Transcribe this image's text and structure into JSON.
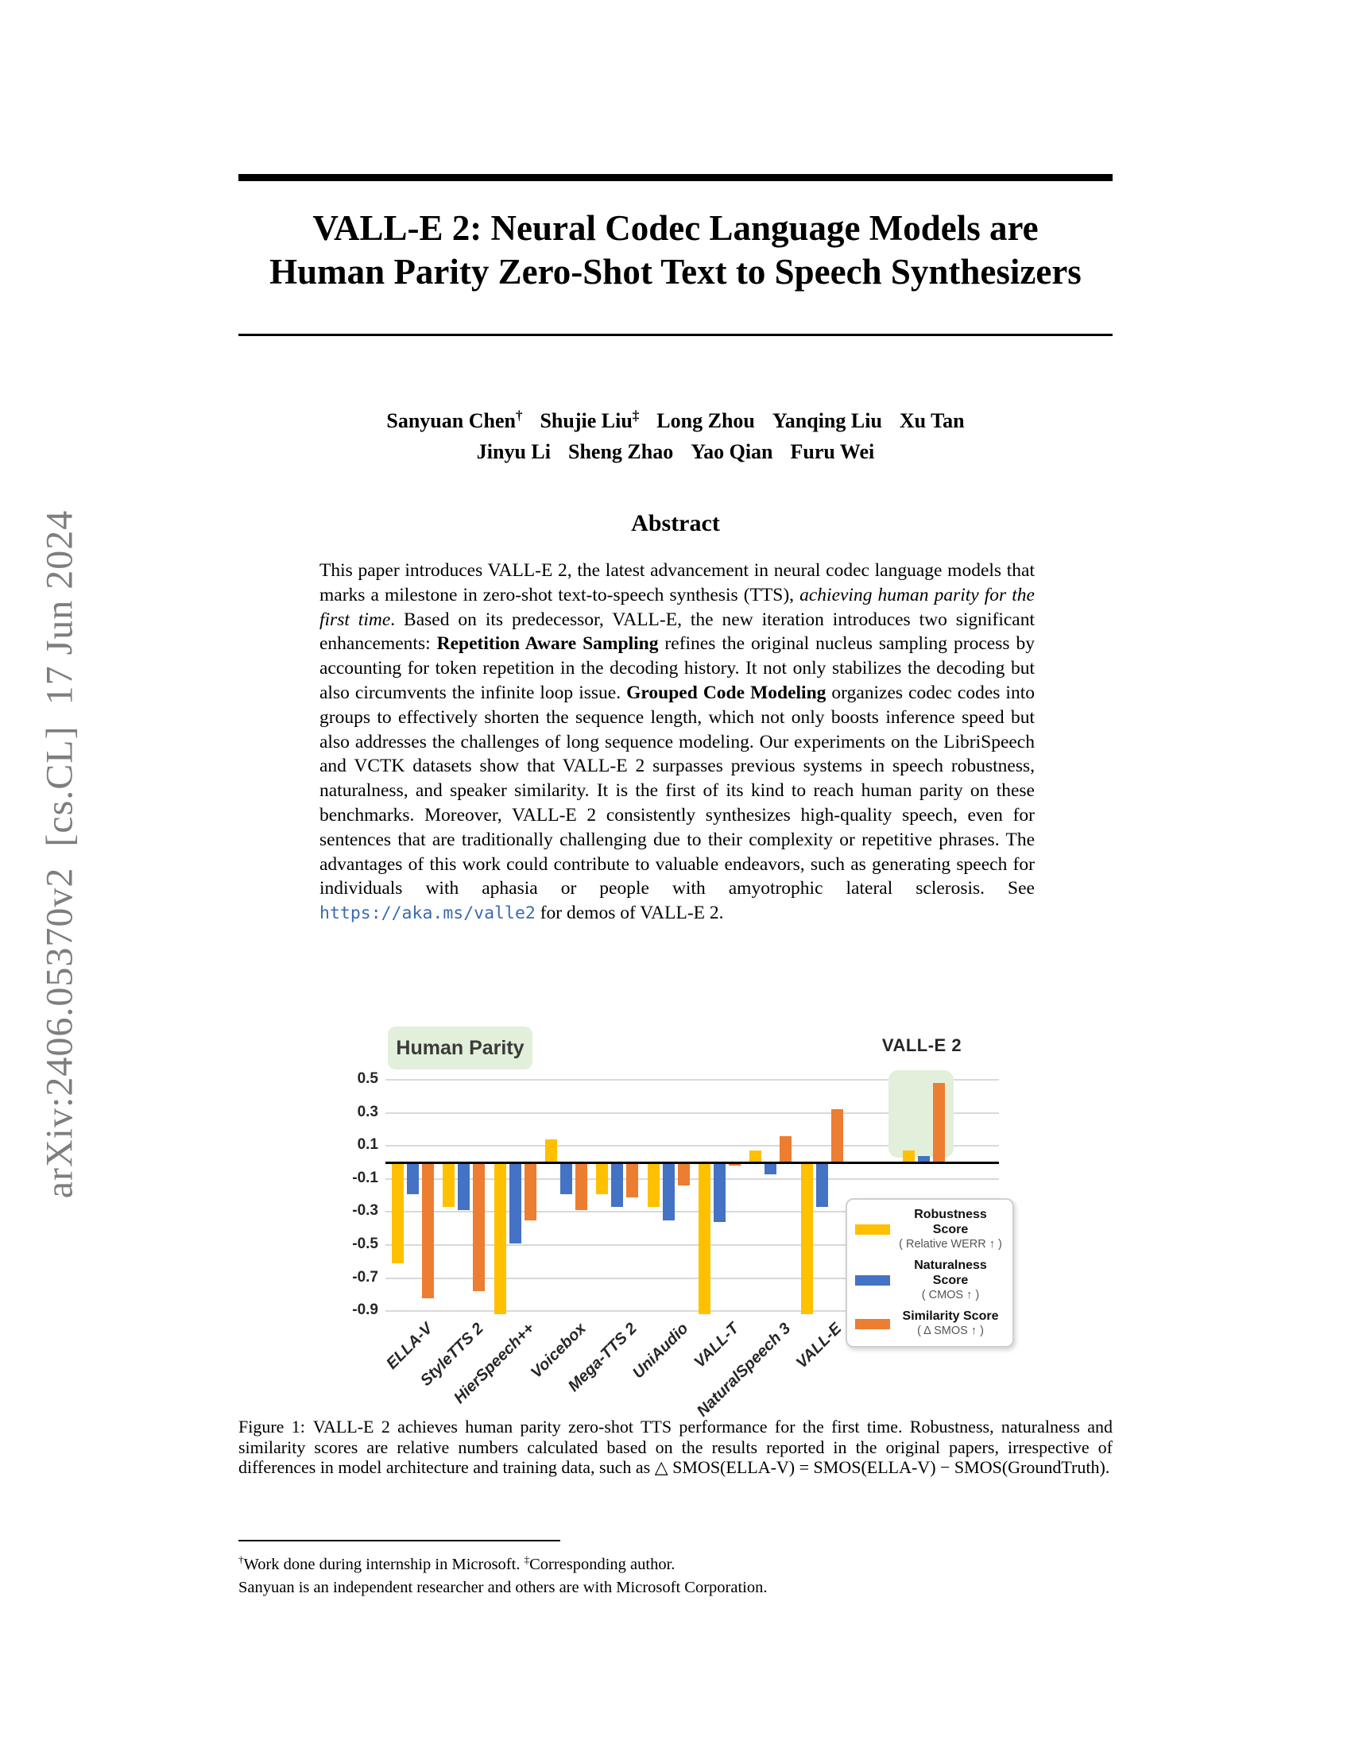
{
  "arxiv_stamp": "arXiv:2406.05370v2  [cs.CL]  17 Jun 2024",
  "title": {
    "line1": "VALL-E 2: Neural Codec Language Models are",
    "line2": "Human Parity Zero-Shot Text to Speech Synthesizers"
  },
  "authors": {
    "line1": [
      {
        "name": "Sanyuan Chen",
        "mark": "†"
      },
      {
        "name": "Shujie Liu",
        "mark": "‡"
      },
      {
        "name": "Long Zhou",
        "mark": ""
      },
      {
        "name": "Yanqing Liu",
        "mark": ""
      },
      {
        "name": "Xu Tan",
        "mark": ""
      }
    ],
    "line2": [
      {
        "name": "Jinyu Li",
        "mark": ""
      },
      {
        "name": "Sheng Zhao",
        "mark": ""
      },
      {
        "name": "Yao Qian",
        "mark": ""
      },
      {
        "name": "Furu Wei",
        "mark": ""
      }
    ]
  },
  "abstract": {
    "heading": "Abstract",
    "segments": [
      {
        "style": "normal",
        "text": "This paper introduces VALL-E 2, the latest advancement in neural codec language models that marks a milestone in zero-shot text-to-speech synthesis (TTS), "
      },
      {
        "style": "italic",
        "text": "achieving human parity for the first time"
      },
      {
        "style": "normal",
        "text": ". Based on its predecessor, VALL-E, the new iteration introduces two significant enhancements: "
      },
      {
        "style": "bold",
        "text": "Repetition Aware Sampling"
      },
      {
        "style": "normal",
        "text": " refines the original nucleus sampling process by accounting for token repetition in the decoding history. It not only stabilizes the decoding but also circumvents the infinite loop issue. "
      },
      {
        "style": "bold",
        "text": "Grouped Code Modeling"
      },
      {
        "style": "normal",
        "text": " organizes codec codes into groups to effectively shorten the sequence length, which not only boosts inference speed but also addresses the challenges of long sequence modeling. Our experiments on the LibriSpeech and VCTK datasets show that VALL-E 2 surpasses previous systems in speech robustness, naturalness, and speaker similarity. It is the first of its kind to reach human parity on these benchmarks. Moreover, VALL-E 2 consistently synthesizes high-quality speech, even for sentences that are traditionally challenging due to their complexity or repetitive phrases. The advantages of this work could contribute to valuable endeavors, such as generating speech for individuals with aphasia or people with amyotrophic lateral sclerosis. See "
      },
      {
        "style": "link",
        "text": "https://aka.ms/valle2"
      },
      {
        "style": "normal",
        "text": " for demos of VALL-E 2."
      }
    ]
  },
  "figure": {
    "human_parity_label": "Human Parity",
    "valle2_label": "VALL-E 2",
    "highlight_color": "#e2efda",
    "caption_prefix": "Figure 1:",
    "caption_body": "VALL-E 2 achieves human parity zero-shot TTS performance for the first time. Robustness, naturalness and similarity scores are relative numbers calculated based on the results reported in the original papers, irrespective of differences in model architecture and training data, such as △ SMOS(ELLA-V) = SMOS(ELLA-V) − SMOS(GroundTruth)."
  },
  "chart_data": {
    "type": "bar",
    "categories": [
      "ELLA-V",
      "StyleTTS 2",
      "HierSpeech++",
      "Voicebox",
      "Mega-TTS 2",
      "UniAudio",
      "VALL-T",
      "NaturalSpeech 3",
      "VALL-E",
      "VALL-E 2"
    ],
    "series": [
      {
        "name": "Robustness Score",
        "sub": "( Relative WERR ↑ )",
        "color": "#ffc000",
        "values": [
          -0.61,
          -0.27,
          -0.92,
          0.14,
          -0.19,
          -0.27,
          -0.92,
          0.07,
          -0.92,
          0.07
        ]
      },
      {
        "name": "Naturalness Score",
        "sub": "( CMOS ↑ )",
        "color": "#4472c4",
        "values": [
          -0.19,
          -0.29,
          -0.49,
          -0.19,
          -0.27,
          -0.35,
          -0.36,
          -0.07,
          -0.27,
          0.04
        ]
      },
      {
        "name": "Similarity Score",
        "sub": "( Δ SMOS ↑ )",
        "color": "#ed7d31",
        "values": [
          -0.82,
          -0.78,
          -0.35,
          -0.29,
          -0.21,
          -0.14,
          -0.02,
          0.16,
          0.32,
          0.48
        ]
      }
    ],
    "ytick_labels": [
      "0.5",
      "0.3",
      "0.1",
      "-0.1",
      "-0.3",
      "-0.5",
      "-0.7",
      "-0.9"
    ],
    "ylim": [
      -0.92,
      0.55
    ],
    "grid": true,
    "legend_position": "lower right",
    "notes": "Robustness bars for HierSpeech++, VALL-T and VALL-E are clipped at the bottom axis (below -0.9). VALL-E 2 group is offset right and highlighted in green. Zero axis drawn as thick black line; category labels rotated 45° bold italic; no label under VALL-E 2 (labeled above chart)."
  },
  "footnote": {
    "line1": [
      {
        "mark": "†",
        "text": "Work done during internship in Microsoft. "
      },
      {
        "mark": "‡",
        "text": "Corresponding author."
      }
    ],
    "line2": "Sanyuan is an independent researcher and others are with Microsoft Corporation."
  }
}
